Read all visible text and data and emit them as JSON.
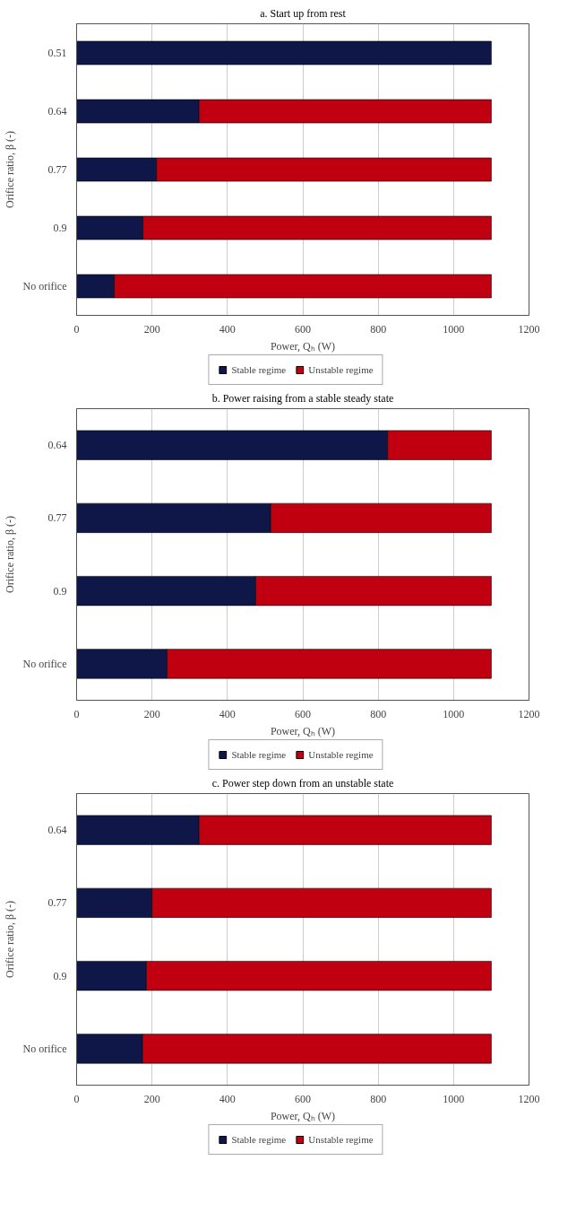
{
  "chart_data": [
    {
      "type": "bar",
      "orientation": "horizontal",
      "stacked": true,
      "title": "a. Start up from rest",
      "xlabel": "Power, Qₕ (W)",
      "ylabel": "Orifice ratio, β (-)",
      "categories": [
        "0.51",
        "0.64",
        "0.77",
        "0.9",
        "No orifice"
      ],
      "series": [
        {
          "name": "Stable regime",
          "color": "#0f1648",
          "values": [
            1100,
            325,
            212,
            176,
            100
          ]
        },
        {
          "name": "Unstable regime",
          "color": "#c00010",
          "values": [
            0,
            775,
            888,
            924,
            1000
          ]
        }
      ],
      "xlim": [
        0,
        1200
      ],
      "xticks": [
        0,
        200,
        400,
        600,
        800,
        1000,
        1200
      ],
      "grid": "x",
      "legend": "bottom"
    },
    {
      "type": "bar",
      "orientation": "horizontal",
      "stacked": true,
      "title": "b. Power raising from a stable steady state",
      "xlabel": "Power, Qₕ (W)",
      "ylabel": "Orifice ratio, β (-)",
      "categories": [
        "0.64",
        "0.77",
        "0.9",
        "No orifice"
      ],
      "series": [
        {
          "name": "Stable regime",
          "color": "#0f1648",
          "values": [
            825,
            515,
            475,
            240
          ]
        },
        {
          "name": "Unstable regime",
          "color": "#c00010",
          "values": [
            275,
            585,
            625,
            860
          ]
        }
      ],
      "xlim": [
        0,
        1200
      ],
      "xticks": [
        0,
        200,
        400,
        600,
        800,
        1000,
        1200
      ],
      "grid": "x",
      "legend": "bottom"
    },
    {
      "type": "bar",
      "orientation": "horizontal",
      "stacked": true,
      "title": "c. Power step down from an unstable state",
      "xlabel": "Power, Qₕ (W)",
      "ylabel": "Orifice ratio, β (-)",
      "categories": [
        "0.64",
        "0.77",
        "0.9",
        "No orifice"
      ],
      "series": [
        {
          "name": "Stable regime",
          "color": "#0f1648",
          "values": [
            325,
            200,
            185,
            175
          ]
        },
        {
          "name": "Unstable regime",
          "color": "#c00010",
          "values": [
            775,
            900,
            915,
            925
          ]
        }
      ],
      "xlim": [
        0,
        1200
      ],
      "xticks": [
        0,
        200,
        400,
        600,
        800,
        1000,
        1200
      ],
      "grid": "x",
      "legend": "bottom"
    }
  ]
}
